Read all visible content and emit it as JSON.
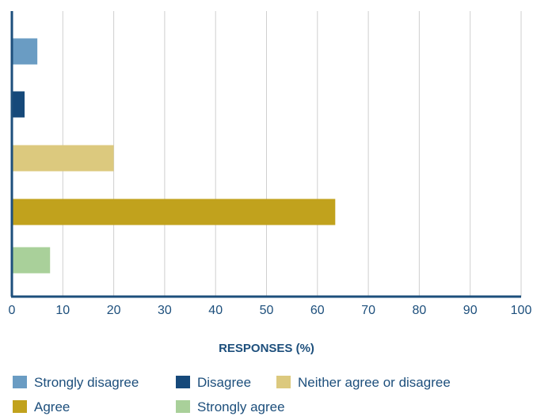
{
  "chart_data": {
    "type": "bar",
    "orientation": "horizontal",
    "title": "",
    "xlabel": "RESPONSES (%)",
    "ylabel": "",
    "xlim": [
      0,
      100
    ],
    "xticks": [
      0,
      10,
      20,
      30,
      40,
      50,
      60,
      70,
      80,
      90,
      100
    ],
    "grid": true,
    "legend_position": "bottom",
    "categories": [
      "Strongly disagree",
      "Disagree",
      "Neither agree or disagree",
      "Agree",
      "Strongly agree"
    ],
    "values": [
      5,
      2.5,
      20,
      63.5,
      7.5
    ],
    "colors": [
      "#6a9cc3",
      "#16497a",
      "#dcc97e",
      "#c1a21d",
      "#a9d09a"
    ]
  }
}
